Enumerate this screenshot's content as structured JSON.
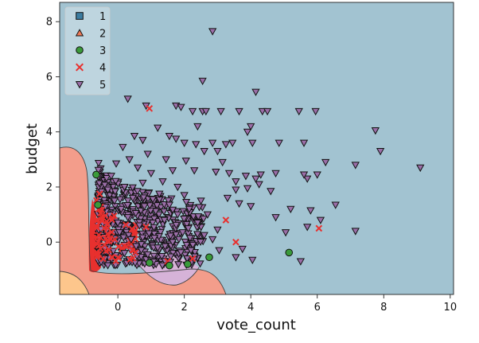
{
  "chart_data": {
    "type": "scatter",
    "title": "",
    "xlabel": "vote_count",
    "ylabel": "budget",
    "xlim": [
      -1.75,
      10.1
    ],
    "ylim": [
      -1.9,
      8.7
    ],
    "xticks": [
      0,
      2,
      4,
      6,
      8,
      10
    ],
    "yticks": [
      0,
      2,
      4,
      6,
      8
    ],
    "grid": false,
    "legend_position": "top-left",
    "background_region_class": "5",
    "series": [
      {
        "name": "1",
        "marker": "square",
        "color": "#3b7ca0"
      },
      {
        "name": "2",
        "marker": "triangle-up",
        "color": "#f07a58"
      },
      {
        "name": "3",
        "marker": "circle",
        "color": "#3a9a3a"
      },
      {
        "name": "4",
        "marker": "x",
        "color": "#e8302e"
      },
      {
        "name": "5",
        "marker": "triangle-down",
        "color": "#9b6ea8"
      }
    ],
    "points": {
      "3": [
        [
          -0.65,
          2.45
        ],
        [
          -0.6,
          1.35
        ],
        [
          5.15,
          -0.38
        ],
        [
          2.75,
          -0.55
        ],
        [
          1.55,
          -0.85
        ],
        [
          2.1,
          -0.8
        ],
        [
          0.95,
          -0.75
        ]
      ],
      "4": [
        [
          0.95,
          4.85
        ],
        [
          6.05,
          0.5
        ],
        [
          3.25,
          0.8
        ],
        [
          3.55,
          0.0
        ],
        [
          -0.55,
          1.75
        ],
        [
          0.85,
          0.55
        ],
        [
          1.5,
          -0.7
        ],
        [
          2.25,
          -0.6
        ]
      ],
      "5": [
        [
          2.85,
          7.65
        ],
        [
          2.55,
          5.85
        ],
        [
          4.15,
          5.45
        ],
        [
          0.3,
          5.2
        ],
        [
          0.85,
          4.95
        ],
        [
          1.75,
          4.95
        ],
        [
          1.9,
          4.9
        ],
        [
          2.25,
          4.75
        ],
        [
          2.55,
          4.75
        ],
        [
          2.65,
          4.75
        ],
        [
          3.1,
          4.75
        ],
        [
          3.65,
          4.75
        ],
        [
          4.35,
          4.75
        ],
        [
          4.5,
          4.75
        ],
        [
          5.45,
          4.75
        ],
        [
          5.95,
          4.75
        ],
        [
          4.0,
          4.2
        ],
        [
          3.9,
          4.0
        ],
        [
          7.75,
          4.05
        ],
        [
          1.2,
          4.15
        ],
        [
          2.4,
          4.2
        ],
        [
          0.5,
          3.85
        ],
        [
          0.75,
          3.7
        ],
        [
          1.55,
          3.85
        ],
        [
          1.75,
          3.75
        ],
        [
          2.0,
          3.6
        ],
        [
          2.35,
          3.55
        ],
        [
          2.85,
          3.6
        ],
        [
          3.25,
          3.55
        ],
        [
          3.45,
          3.6
        ],
        [
          4.05,
          3.6
        ],
        [
          4.85,
          3.6
        ],
        [
          5.6,
          3.6
        ],
        [
          7.9,
          3.3
        ],
        [
          9.1,
          2.7
        ],
        [
          7.15,
          2.8
        ],
        [
          6.25,
          2.9
        ],
        [
          5.7,
          2.3
        ],
        [
          5.6,
          2.45
        ],
        [
          6.0,
          2.45
        ],
        [
          4.75,
          2.5
        ],
        [
          4.15,
          2.3
        ],
        [
          4.3,
          2.45
        ],
        [
          3.85,
          2.4
        ],
        [
          4.25,
          2.1
        ],
        [
          4.6,
          1.85
        ],
        [
          3.35,
          2.5
        ],
        [
          3.55,
          2.2
        ],
        [
          3.9,
          1.95
        ],
        [
          3.55,
          1.9
        ],
        [
          3.3,
          1.6
        ],
        [
          3.65,
          1.4
        ],
        [
          4.0,
          1.3
        ],
        [
          5.2,
          1.2
        ],
        [
          5.8,
          1.15
        ],
        [
          6.55,
          1.35
        ],
        [
          6.1,
          0.8
        ],
        [
          4.75,
          0.9
        ],
        [
          5.7,
          0.55
        ],
        [
          5.05,
          0.35
        ],
        [
          7.15,
          0.4
        ],
        [
          5.5,
          -0.7
        ],
        [
          4.05,
          -0.65
        ],
        [
          3.55,
          -0.55
        ],
        [
          3.75,
          -0.25
        ],
        [
          3.05,
          -0.3
        ],
        [
          2.85,
          0.1
        ],
        [
          2.2,
          -0.3
        ],
        [
          1.65,
          0.0
        ],
        [
          1.2,
          -0.2
        ],
        [
          0.35,
          3.0
        ],
        [
          0.6,
          2.7
        ],
        [
          1.0,
          2.5
        ],
        [
          1.35,
          2.2
        ],
        [
          1.8,
          2.0
        ],
        [
          2.0,
          1.7
        ],
        [
          2.5,
          1.5
        ],
        [
          2.15,
          1.2
        ],
        [
          2.7,
          1.0
        ],
        [
          1.8,
          1.0
        ],
        [
          1.4,
          0.8
        ],
        [
          2.4,
          0.7
        ],
        [
          3.0,
          0.45
        ],
        [
          2.6,
          0.25
        ],
        [
          0.2,
          2.0
        ],
        [
          0.45,
          1.6
        ],
        [
          0.1,
          1.2
        ],
        [
          0.8,
          1.3
        ],
        [
          0.3,
          0.9
        ],
        [
          0.65,
          0.6
        ],
        [
          0.05,
          0.35
        ],
        [
          0.4,
          0.1
        ],
        [
          -0.2,
          2.4
        ],
        [
          -0.3,
          1.9
        ],
        [
          -0.1,
          1.5
        ],
        [
          0.0,
          0.7
        ],
        [
          0.55,
          -0.15
        ],
        [
          1.1,
          0.15
        ],
        [
          1.95,
          0.35
        ],
        [
          2.3,
          2.6
        ],
        [
          1.65,
          2.6
        ],
        [
          2.05,
          2.95
        ],
        [
          3.15,
          2.9
        ],
        [
          2.95,
          2.55
        ],
        [
          0.15,
          3.45
        ],
        [
          0.9,
          3.2
        ],
        [
          1.45,
          3.0
        ],
        [
          2.6,
          3.3
        ],
        [
          3.0,
          3.3
        ],
        [
          -0.05,
          2.85
        ],
        [
          0.75,
          2.15
        ],
        [
          1.25,
          1.75
        ],
        [
          1.55,
          1.35
        ],
        [
          0.2,
          -0.4
        ],
        [
          0.9,
          -0.45
        ]
      ]
    }
  }
}
